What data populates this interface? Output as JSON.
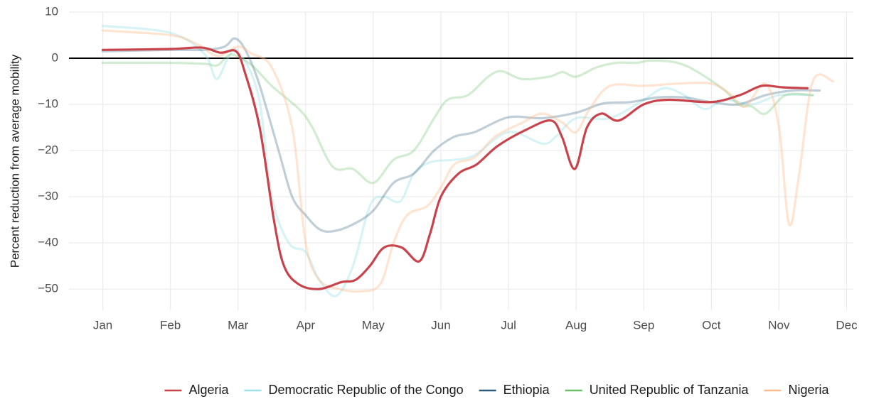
{
  "chart_data": {
    "type": "line",
    "ylabel": "Percent reduction from average mobility",
    "xlim": [
      -0.5,
      11.1
    ],
    "xticks": [
      {
        "value": 0,
        "label": "Jan"
      },
      {
        "value": 1,
        "label": "Feb"
      },
      {
        "value": 2,
        "label": "Mar"
      },
      {
        "value": 3,
        "label": "Apr"
      },
      {
        "value": 4,
        "label": "May"
      },
      {
        "value": 5,
        "label": "Jun"
      },
      {
        "value": 6,
        "label": "Jul"
      },
      {
        "value": 7,
        "label": "Aug"
      },
      {
        "value": 8,
        "label": "Sep"
      },
      {
        "value": 9,
        "label": "Oct"
      },
      {
        "value": 10,
        "label": "Nov"
      },
      {
        "value": 11,
        "label": "Dec"
      }
    ],
    "ylim": [
      -54.6,
      10
    ],
    "yticks": [
      10,
      0,
      {
        "value": -10,
        "label": "−10"
      },
      {
        "value": -20,
        "label": "−20"
      },
      {
        "value": -30,
        "label": "−30"
      },
      {
        "value": -40,
        "label": "−40"
      },
      {
        "value": -50,
        "label": "−50"
      }
    ],
    "grid": true,
    "legend": "bottom",
    "series": [
      {
        "name": "Democratic Republic of the Congo",
        "color": "#9ee0e6",
        "alpha": 0.4,
        "x": [
          0,
          1,
          1.5,
          1.68,
          1.85,
          2,
          2.3,
          2.5,
          2.75,
          3,
          3.2,
          3.45,
          3.7,
          3.95,
          4.15,
          4.4,
          4.6,
          4.85,
          5.2,
          5.5,
          6,
          6.5,
          6.7,
          7,
          7.5,
          8,
          8.3,
          8.6,
          8.9,
          9.2,
          9.6,
          10,
          10.5
        ],
        "values": [
          7,
          5.5,
          1,
          -4.5,
          0,
          1.5,
          -8,
          -30,
          -40,
          -42,
          -48,
          -51.5,
          -45,
          -32,
          -30,
          -31,
          -25,
          -22.5,
          -22,
          -21,
          -16,
          -18.5,
          -17,
          -13,
          -13,
          -9,
          -6.5,
          -8,
          -11,
          -9,
          -10,
          -8,
          -8
        ]
      },
      {
        "name": "Ethiopia",
        "color": "#2b5c7a",
        "alpha": 0.3,
        "x": [
          0,
          1,
          1.5,
          1.8,
          1.95,
          2.1,
          2.3,
          2.6,
          2.8,
          3,
          3.2,
          3.4,
          3.7,
          4,
          4.3,
          4.6,
          4.9,
          5.2,
          5.5,
          6,
          6.5,
          7,
          7.4,
          7.8,
          8.2,
          8.6,
          9,
          9.4,
          9.8,
          10.2,
          10.6
        ],
        "values": [
          1.5,
          1.8,
          1.8,
          2.5,
          4.3,
          2,
          -5,
          -20,
          -30,
          -34,
          -37,
          -37.5,
          -36,
          -33,
          -27,
          -25,
          -20,
          -17,
          -16,
          -12.8,
          -13,
          -11.8,
          -9.8,
          -9.5,
          -8.5,
          -8.5,
          -9.5,
          -10,
          -8,
          -7,
          -7
        ]
      },
      {
        "name": "United Republic of Tanzania",
        "color": "#6bbf6b",
        "alpha": 0.3,
        "x": [
          0,
          1,
          1.5,
          1.7,
          1.9,
          2.2,
          2.5,
          2.9,
          3.1,
          3.4,
          3.7,
          4,
          4.3,
          4.6,
          4.9,
          5.1,
          5.4,
          5.7,
          5.9,
          6.2,
          6.6,
          6.8,
          7,
          7.3,
          7.6,
          7.9,
          8.1,
          8.5,
          8.8,
          9.2,
          9.4,
          9.6,
          9.8,
          10.1,
          10.5
        ],
        "values": [
          -1,
          -1,
          -1.2,
          -1.5,
          0.8,
          -1.5,
          -6,
          -11,
          -15,
          -23.5,
          -24,
          -27,
          -22,
          -20,
          -13,
          -9,
          -8,
          -4,
          -2.8,
          -4.5,
          -4,
          -3,
          -4,
          -2,
          -1,
          -1,
          -0.5,
          -1,
          -3,
          -7,
          -10,
          -10.5,
          -12,
          -8,
          -8
        ]
      },
      {
        "name": "Nigeria",
        "color": "#ffbb8f",
        "alpha": 0.4,
        "x": [
          0,
          1,
          1.4,
          1.7,
          2,
          2.2,
          2.5,
          2.8,
          3,
          3.2,
          3.5,
          3.8,
          4.1,
          4.3,
          4.5,
          4.8,
          5,
          5.2,
          5.5,
          5.8,
          6.2,
          6.5,
          6.8,
          7,
          7.2,
          7.5,
          8,
          8.5,
          9,
          9.3,
          9.5,
          9.8,
          10,
          10.15,
          10.3,
          10.5,
          10.8
        ],
        "values": [
          6,
          5,
          3,
          0.5,
          2.5,
          1,
          -2,
          -15,
          -40,
          -48,
          -50,
          -50.5,
          -49,
          -40,
          -34,
          -32,
          -28,
          -23,
          -21.5,
          -17,
          -14,
          -12,
          -14,
          -16,
          -11,
          -6,
          -6,
          -5.5,
          -5.5,
          -8,
          -10.5,
          -5.5,
          -15,
          -36,
          -25,
          -5,
          -5
        ]
      },
      {
        "name": "Algeria",
        "color": "#c8434b",
        "alpha": 1,
        "x": [
          0,
          1,
          1.47,
          1.74,
          1.97,
          2.1,
          2.32,
          2.53,
          2.68,
          2.9,
          3.2,
          3.53,
          3.74,
          3.95,
          4.16,
          4.42,
          4.68,
          4.84,
          5,
          5.26,
          5.53,
          5.84,
          6.26,
          6.63,
          6.79,
          6.98,
          7.16,
          7.37,
          7.63,
          8,
          8.37,
          9,
          9.42,
          9.74,
          10.05,
          10.42
        ],
        "values": [
          1.8,
          2,
          2.3,
          1.2,
          1.5,
          -3,
          -15,
          -35,
          -45,
          -49,
          -50,
          -48.5,
          -48,
          -45,
          -41,
          -41,
          -44,
          -38,
          -30,
          -25,
          -23,
          -19,
          -15.5,
          -13.5,
          -17,
          -24,
          -15,
          -12,
          -13.5,
          -10,
          -9,
          -9.5,
          -8,
          -6,
          -6.3,
          -6.5
        ]
      }
    ],
    "legend_order": [
      4,
      0,
      1,
      2,
      3
    ]
  }
}
